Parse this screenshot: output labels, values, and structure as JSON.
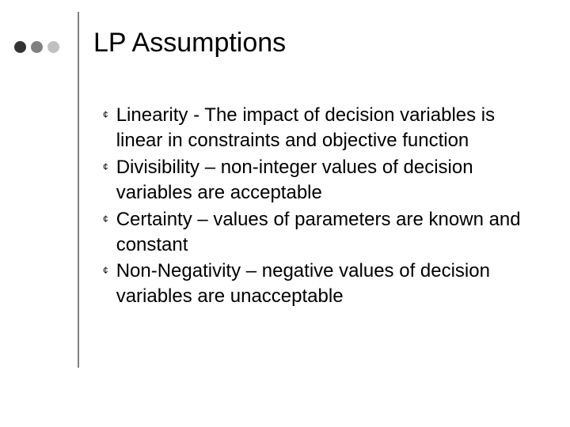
{
  "slide": {
    "title": "LP Assumptions",
    "title_fontsize": 34,
    "title_color": "#000000",
    "body_fontsize": 24,
    "body_color": "#000000",
    "background_color": "#ffffff",
    "decoration": {
      "dots": [
        {
          "color": "#333333"
        },
        {
          "color": "#808080"
        },
        {
          "color": "#c0c0c0"
        }
      ],
      "dot_size": 15,
      "vertical_line_color": "#808080",
      "vertical_line_width": 2
    },
    "bullet_marker": "¢",
    "bullets": [
      {
        "text": "Linearity - The impact of decision variables is linear in constraints and objective function"
      },
      {
        "text": "Divisibility – non-integer values of decision variables are acceptable"
      },
      {
        "text": "Certainty – values of parameters are known and constant"
      },
      {
        "text": "Non-Negativity – negative values of decision variables are unacceptable"
      }
    ]
  }
}
